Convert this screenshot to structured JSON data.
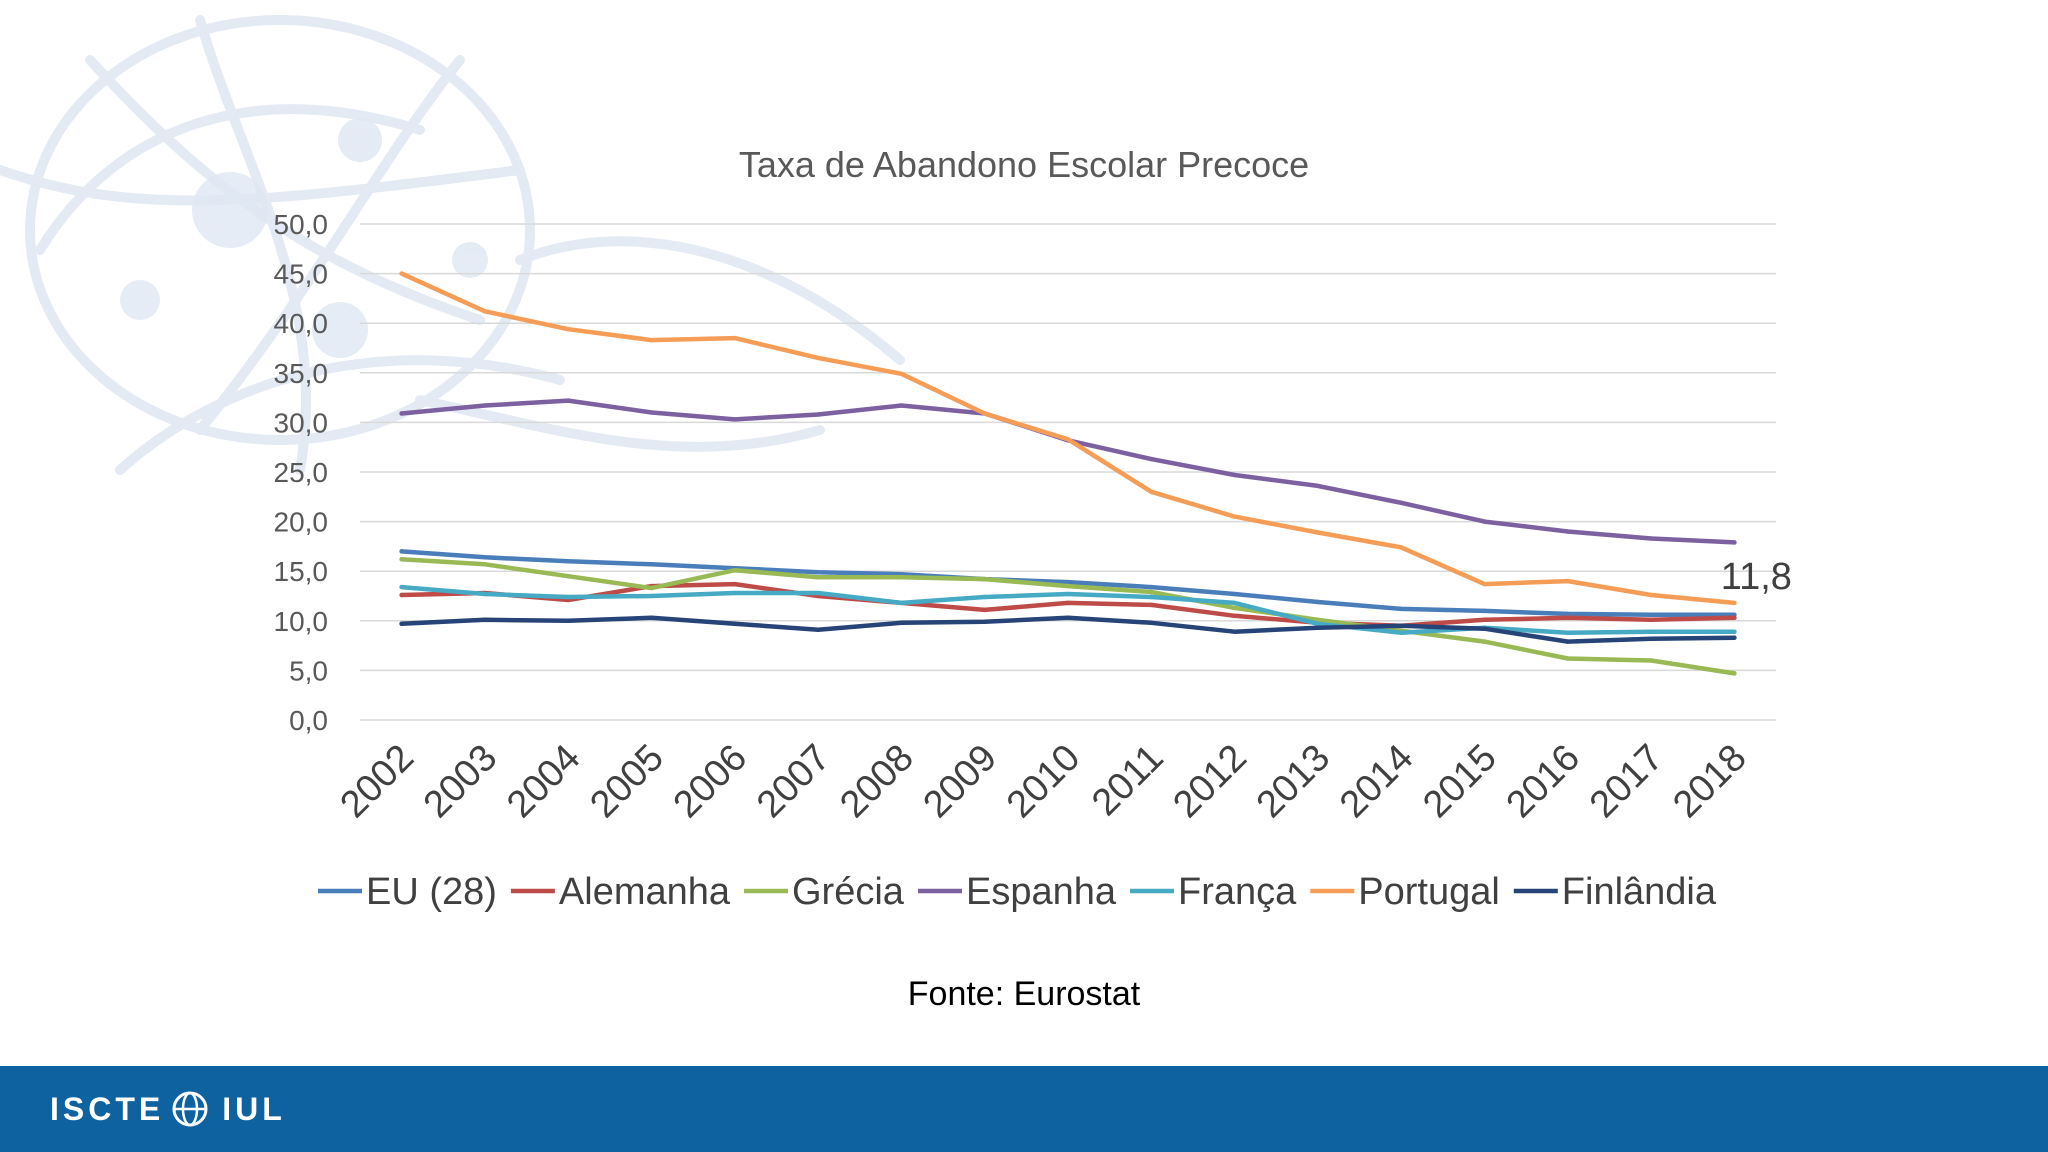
{
  "slide": {
    "source": "Fonte: Eurostat",
    "logo_left": "ISCTE",
    "logo_right": "IUL"
  },
  "colors": {
    "footer": "#0e62a0",
    "grid": "#d9d9d9",
    "EU (28)": "#4a7ebb",
    "Alemanha": "#be4b48",
    "Grécia": "#98b954",
    "Espanha": "#7d60a0",
    "França": "#46aac5",
    "Portugal": "#f59d56",
    "Finlândia": "#264478"
  },
  "chart_data": {
    "type": "line",
    "title": "Taxa de Abandono Escolar Precoce",
    "xlabel": "",
    "ylabel": "",
    "ylim": [
      0,
      50
    ],
    "yticks": [
      "0,0",
      "5,0",
      "10,0",
      "15,0",
      "20,0",
      "25,0",
      "30,0",
      "35,0",
      "40,0",
      "45,0",
      "50,0"
    ],
    "categories": [
      "2002",
      "2003",
      "2004",
      "2005",
      "2006",
      "2007",
      "2008",
      "2009",
      "2010",
      "2011",
      "2012",
      "2013",
      "2014",
      "2015",
      "2016",
      "2017",
      "2018"
    ],
    "legend_position": "bottom",
    "series": [
      {
        "name": "EU (28)",
        "values": [
          17.0,
          16.4,
          16.0,
          15.7,
          15.3,
          14.9,
          14.7,
          14.2,
          13.9,
          13.4,
          12.7,
          11.9,
          11.2,
          11.0,
          10.7,
          10.6,
          10.6
        ]
      },
      {
        "name": "Alemanha",
        "values": [
          12.6,
          12.8,
          12.1,
          13.5,
          13.7,
          12.5,
          11.8,
          11.1,
          11.8,
          11.6,
          10.5,
          9.8,
          9.5,
          10.1,
          10.3,
          10.1,
          10.3
        ]
      },
      {
        "name": "Grécia",
        "values": [
          16.2,
          15.7,
          14.5,
          13.3,
          15.1,
          14.4,
          14.4,
          14.2,
          13.5,
          12.9,
          11.3,
          10.1,
          9.0,
          7.9,
          6.2,
          6.0,
          4.7
        ]
      },
      {
        "name": "Espanha",
        "values": [
          30.9,
          31.7,
          32.2,
          31.0,
          30.3,
          30.8,
          31.7,
          30.9,
          28.2,
          26.3,
          24.7,
          23.6,
          21.9,
          20.0,
          19.0,
          18.3,
          17.9
        ]
      },
      {
        "name": "França",
        "values": [
          13.4,
          12.7,
          12.4,
          12.5,
          12.8,
          12.8,
          11.8,
          12.4,
          12.7,
          12.4,
          11.8,
          9.7,
          8.8,
          9.3,
          8.8,
          8.9,
          8.9
        ]
      },
      {
        "name": "Portugal",
        "values": [
          45.0,
          41.2,
          39.4,
          38.3,
          38.5,
          36.5,
          34.9,
          30.9,
          28.3,
          23.0,
          20.5,
          18.9,
          17.4,
          13.7,
          14.0,
          12.6,
          11.8
        ]
      },
      {
        "name": "Finlândia",
        "values": [
          9.7,
          10.1,
          10.0,
          10.3,
          9.7,
          9.1,
          9.8,
          9.9,
          10.3,
          9.8,
          8.9,
          9.3,
          9.5,
          9.2,
          7.9,
          8.2,
          8.3
        ]
      }
    ],
    "annotations": [
      {
        "series": "Portugal",
        "category": "2018",
        "text": "11,8"
      }
    ]
  }
}
